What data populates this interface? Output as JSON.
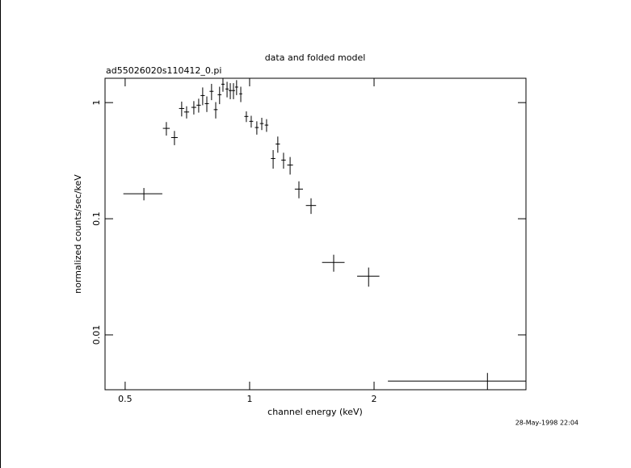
{
  "chart_data": {
    "type": "scatter",
    "title": "data and folded model",
    "subtitle": "ad55026020s110412_0.pi",
    "x_label": "channel energy (keV)",
    "y_label": "normalized counts/sec/keV",
    "timestamp": "28-May-1998 22:04",
    "log_x": true,
    "log_y": true,
    "xlim": [
      0.447,
      4.66
    ],
    "ylim": [
      0.00337,
      1.62
    ],
    "xticks": [
      0.5,
      1,
      2
    ],
    "yticks": [
      0.01,
      0.1,
      1
    ],
    "series": [
      {
        "color": "#000000",
        "x": [
          0.555,
          0.629,
          0.658,
          0.685,
          0.704,
          0.733,
          0.753,
          0.77,
          0.788,
          0.809,
          0.828,
          0.846,
          0.862,
          0.882,
          0.898,
          0.914,
          0.93,
          0.952,
          0.982,
          1.009,
          1.041,
          1.07,
          1.099,
          1.14,
          1.17,
          1.208,
          1.253,
          1.316,
          1.408,
          1.597,
          1.94,
          3.76
        ],
        "xerr": [
          0.06,
          0.012,
          0.012,
          0.01,
          0.01,
          0.01,
          0.009,
          0.009,
          0.009,
          0.009,
          0.009,
          0.009,
          0.008,
          0.008,
          0.008,
          0.008,
          0.008,
          0.008,
          0.011,
          0.011,
          0.011,
          0.011,
          0.011,
          0.014,
          0.014,
          0.015,
          0.02,
          0.03,
          0.04,
          0.1,
          0.12,
          1.6
        ],
        "values": [
          0.164,
          0.6,
          0.5,
          0.89,
          0.83,
          0.91,
          0.95,
          1.15,
          0.98,
          1.25,
          0.87,
          1.17,
          1.44,
          1.31,
          1.27,
          1.27,
          1.36,
          1.19,
          0.76,
          0.69,
          0.61,
          0.66,
          0.64,
          0.33,
          0.44,
          0.32,
          0.29,
          0.18,
          0.13,
          0.042,
          0.032,
          0.004
        ],
        "yerr": [
          0.02,
          0.08,
          0.07,
          0.13,
          0.1,
          0.12,
          0.13,
          0.2,
          0.15,
          0.2,
          0.14,
          0.2,
          0.2,
          0.2,
          0.2,
          0.2,
          0.2,
          0.18,
          0.08,
          0.08,
          0.08,
          0.08,
          0.08,
          0.06,
          0.07,
          0.05,
          0.05,
          0.03,
          0.02,
          0.007,
          0.006,
          0.0007
        ]
      }
    ]
  }
}
